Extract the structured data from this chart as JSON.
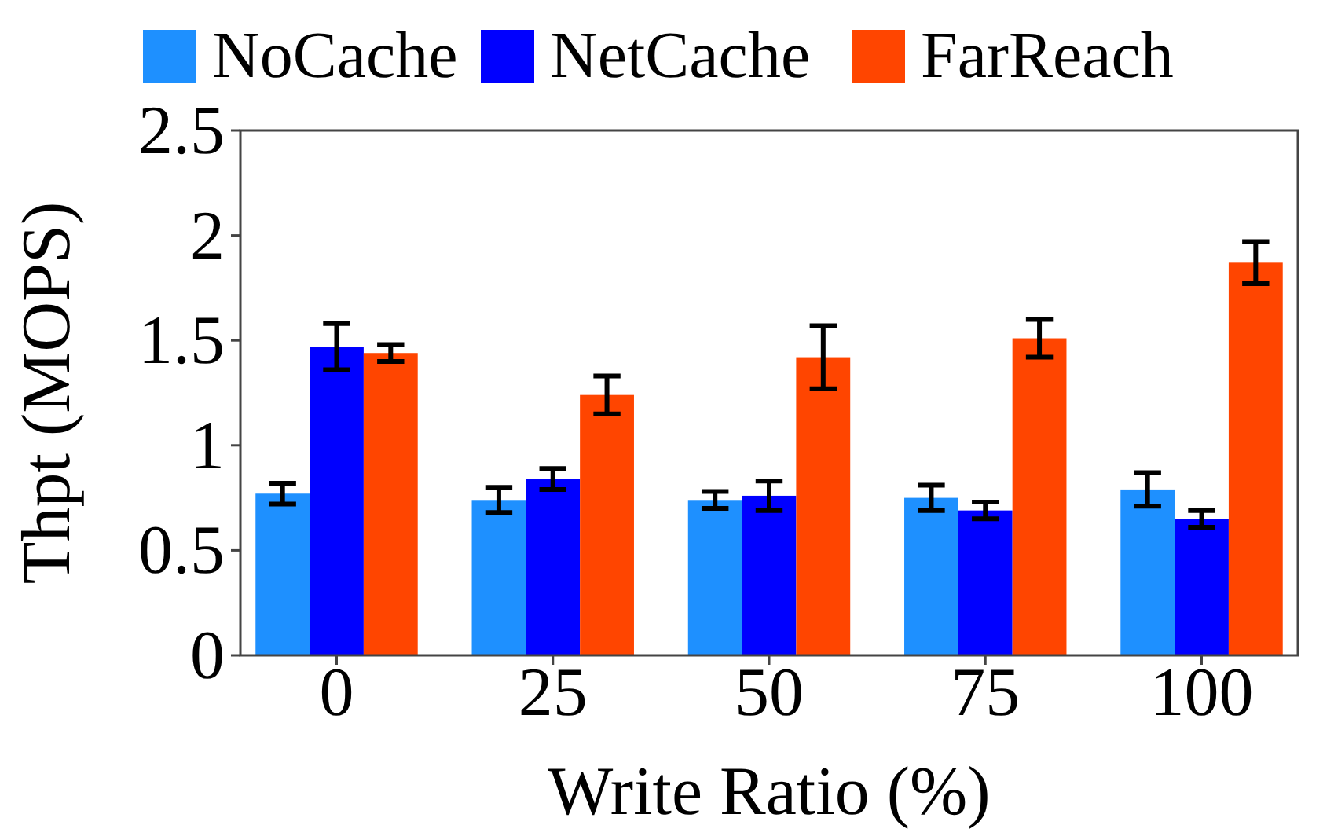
{
  "chart_data": {
    "type": "bar",
    "xlabel": "Write Ratio (%)",
    "ylabel": "Thpt (MOPS)",
    "categories": [
      "0",
      "25",
      "50",
      "75",
      "100"
    ],
    "series": [
      {
        "name": "NoCache",
        "color": "#1e90ff",
        "values": [
          0.77,
          0.74,
          0.74,
          0.75,
          0.79
        ],
        "errors": [
          0.05,
          0.06,
          0.04,
          0.06,
          0.08
        ]
      },
      {
        "name": "NetCache",
        "color": "#0000ff",
        "values": [
          1.47,
          0.84,
          0.76,
          0.69,
          0.65
        ],
        "errors": [
          0.11,
          0.05,
          0.07,
          0.04,
          0.04
        ]
      },
      {
        "name": "FarReach",
        "color": "#ff4500",
        "values": [
          1.44,
          1.24,
          1.42,
          1.51,
          1.87
        ],
        "errors": [
          0.04,
          0.09,
          0.15,
          0.09,
          0.1
        ]
      }
    ],
    "ylim": [
      0,
      2.5
    ],
    "yticks": [
      0,
      0.5,
      1,
      1.5,
      2,
      2.5
    ],
    "legend": "top",
    "grid": false
  }
}
